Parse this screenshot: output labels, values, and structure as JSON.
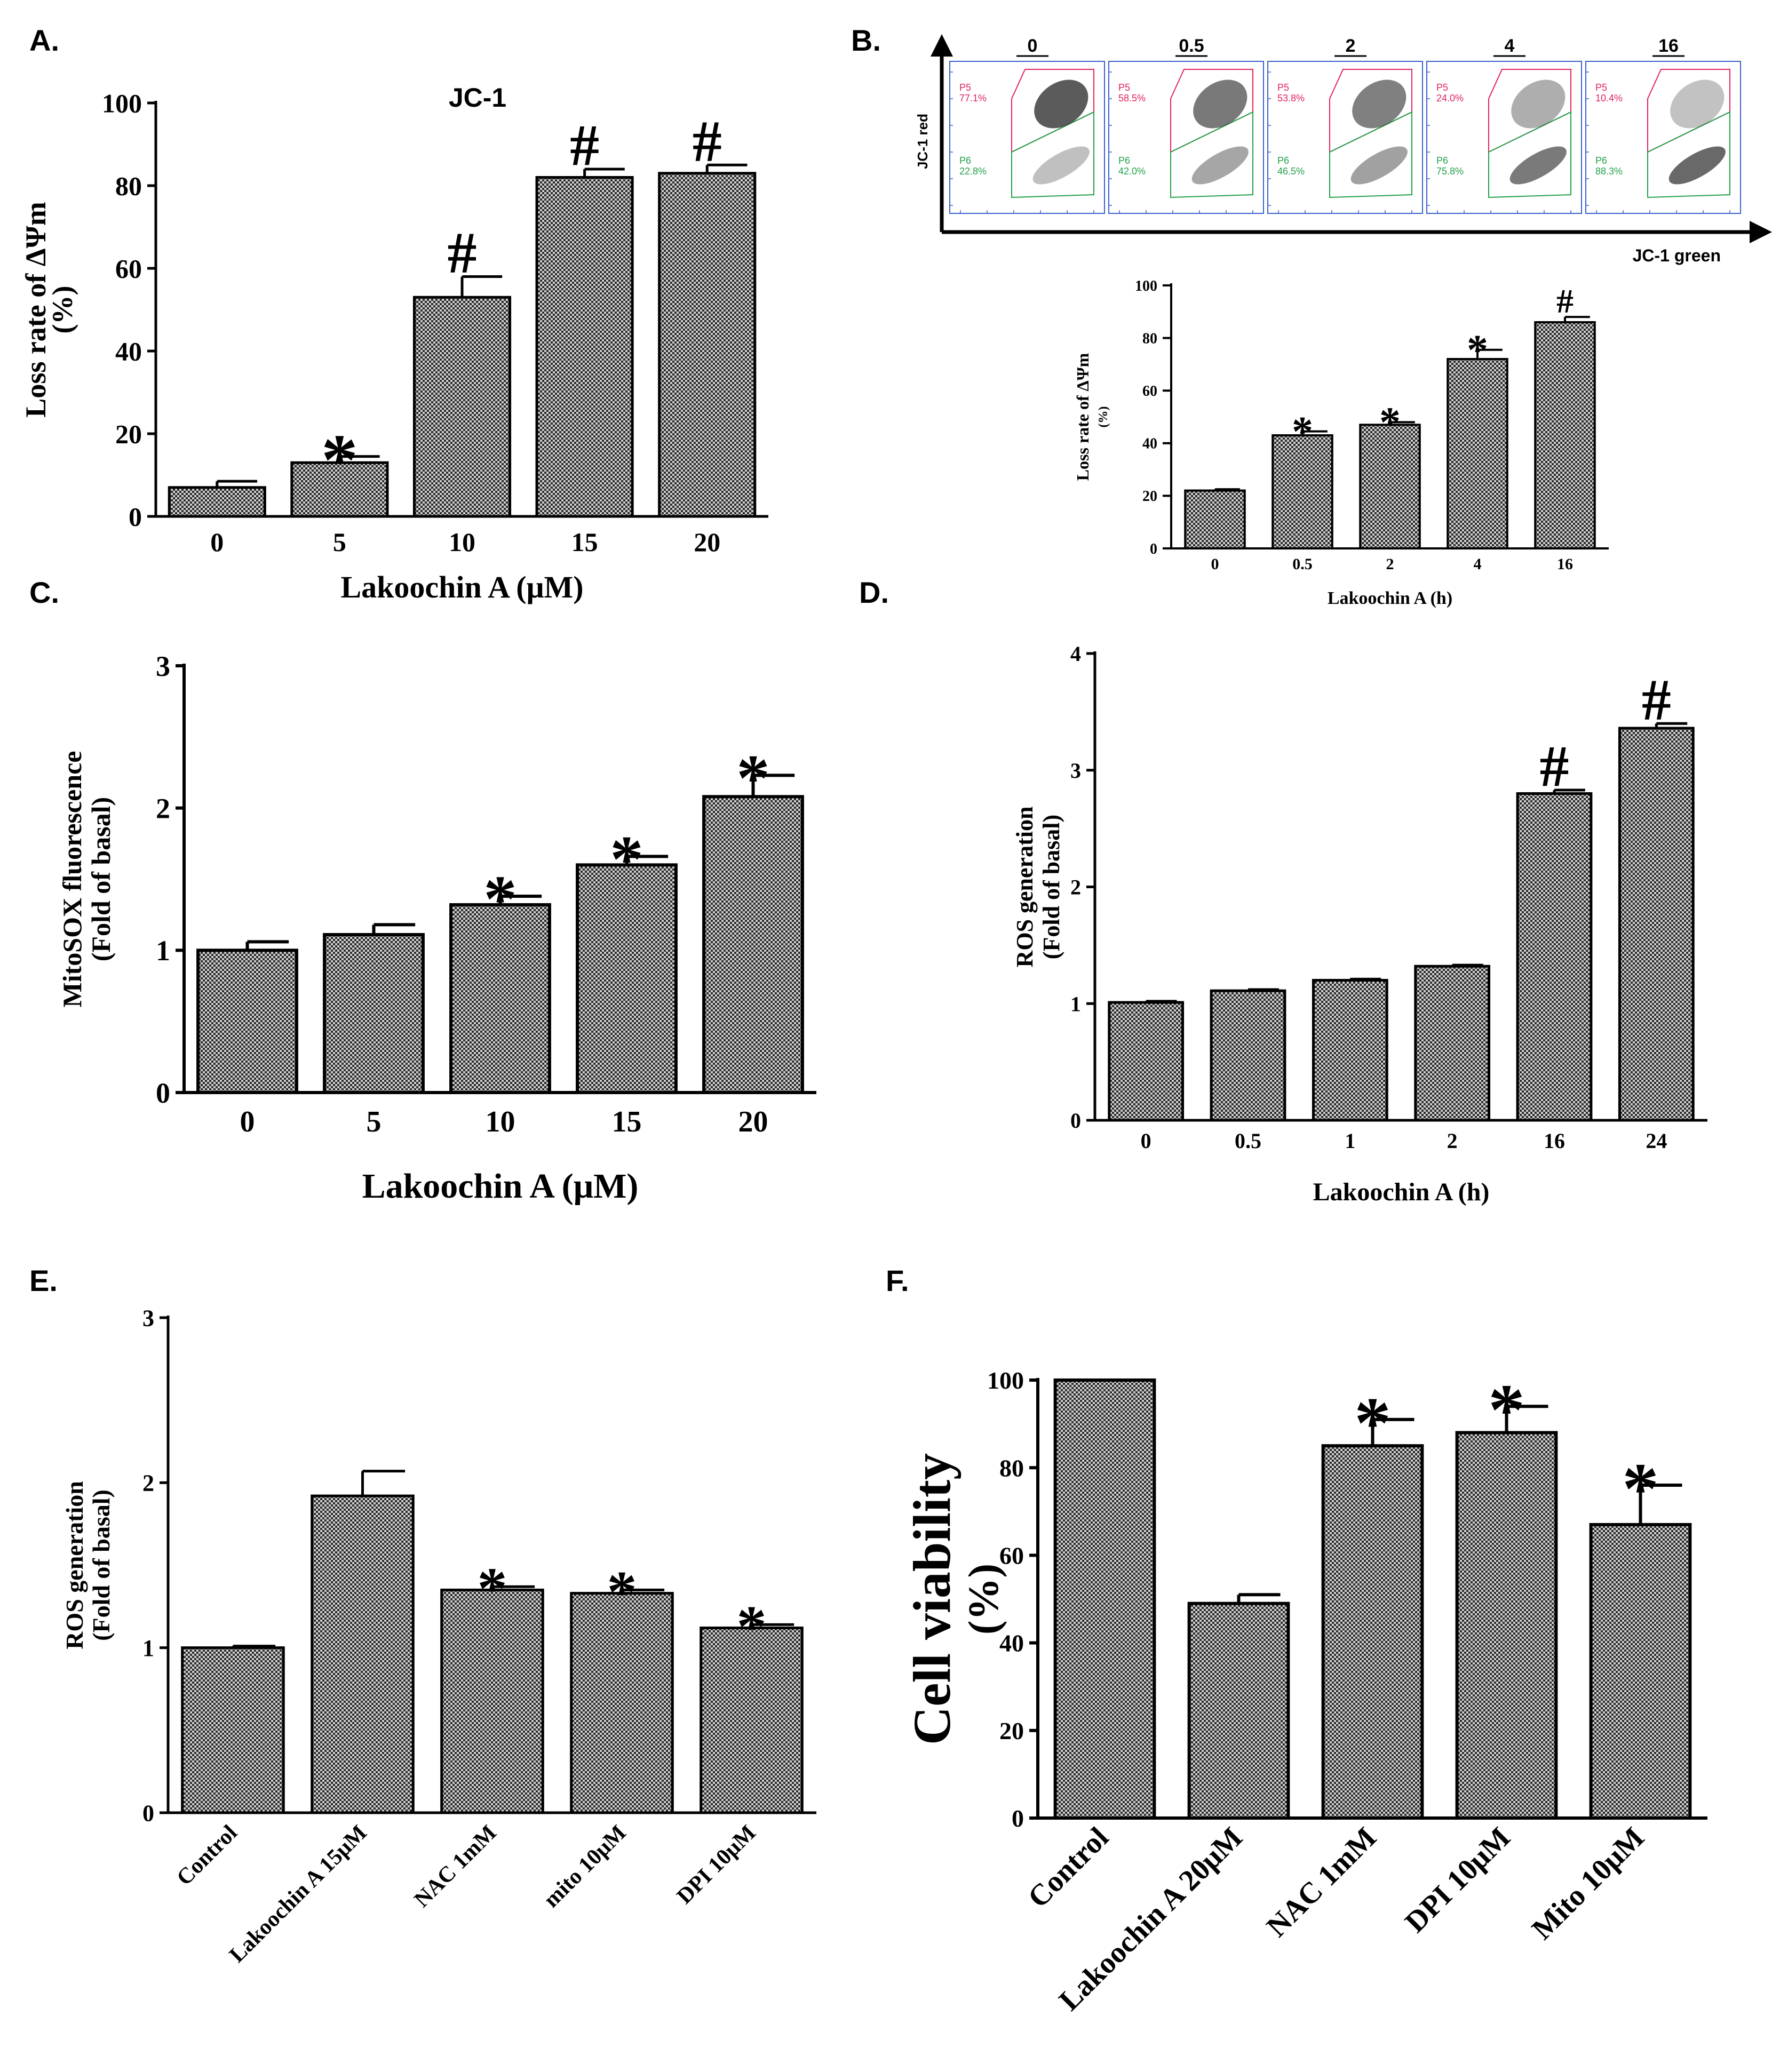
{
  "panels": {
    "A": {
      "letter": "A."
    },
    "B": {
      "letter": "B.",
      "flow": {
        "y_axis_label": "JC-1 red",
        "x_axis_label": "JC-1 green",
        "gate_upper_name": "P5",
        "gate_lower_name": "P6",
        "plots": [
          {
            "label": "0",
            "upper": "77.1%",
            "lower": "22.8%"
          },
          {
            "label": "0.5",
            "upper": "58.5%",
            "lower": "42.0%"
          },
          {
            "label": "2",
            "upper": "53.8%",
            "lower": "46.5%"
          },
          {
            "label": "4",
            "upper": "24.0%",
            "lower": "75.8%"
          },
          {
            "label": "16",
            "upper": "10.4%",
            "lower": "88.3%"
          }
        ]
      }
    },
    "C": {
      "letter": "C."
    },
    "D": {
      "letter": "D."
    },
    "E": {
      "letter": "E."
    },
    "F": {
      "letter": "F."
    }
  },
  "colors": {
    "bar_fill": "#bdbdbd",
    "bar_stroke": "#000000",
    "gate_upper": "#e0245e",
    "gate_lower": "#22a04a",
    "flow_frame": "#3a5fcd"
  },
  "chart_data": [
    {
      "id": "A",
      "type": "bar",
      "title": "JC-1",
      "categories": [
        "0",
        "5",
        "10",
        "15",
        "20"
      ],
      "values": [
        7,
        13,
        53,
        82,
        83
      ],
      "errors": [
        1.5,
        1.5,
        5,
        2,
        2
      ],
      "annotations": [
        "",
        "*",
        "#",
        "#",
        "#"
      ],
      "xlabel": "Lakoochin A (μM)",
      "ylabel": [
        "Loss rate of ΔΨm",
        "(%)"
      ],
      "ylim": [
        0,
        100
      ],
      "yticks": [
        "0",
        "20",
        "40",
        "60",
        "80",
        "100"
      ]
    },
    {
      "id": "B",
      "type": "bar",
      "title": "",
      "categories": [
        "0",
        "0.5",
        "2",
        "4",
        "16"
      ],
      "values": [
        22,
        43,
        47,
        72,
        86
      ],
      "errors": [
        0.5,
        1.5,
        1,
        3.5,
        2
      ],
      "annotations": [
        "",
        "*",
        "*",
        "*",
        "#"
      ],
      "xlabel": "Lakoochin A  (h)",
      "ylabel": [
        "Loss rate of ΔΨm",
        "(%)"
      ],
      "ylim": [
        0,
        100
      ],
      "yticks": [
        "0",
        "20",
        "40",
        "60",
        "80",
        "100"
      ]
    },
    {
      "id": "C",
      "type": "bar",
      "title": "",
      "categories": [
        "0",
        "5",
        "10",
        "15",
        "20"
      ],
      "values": [
        1.0,
        1.11,
        1.32,
        1.6,
        2.08
      ],
      "errors": [
        0.06,
        0.07,
        0.06,
        0.06,
        0.15
      ],
      "annotations": [
        "",
        "",
        "*",
        "*",
        "*"
      ],
      "xlabel": "Lakoochin A (μM)",
      "ylabel": [
        "MitoSOX fluorescence",
        "(Fold of basal)"
      ],
      "ylim": [
        0,
        3
      ],
      "yticks": [
        "0",
        "1",
        "2",
        "3"
      ]
    },
    {
      "id": "D",
      "type": "bar",
      "title": "",
      "categories": [
        "0",
        "0.5",
        "1",
        "2",
        "16",
        "24"
      ],
      "values": [
        1.01,
        1.11,
        1.2,
        1.32,
        2.8,
        3.36
      ],
      "errors": [
        0.01,
        0.01,
        0.01,
        0.01,
        0.03,
        0.04
      ],
      "annotations": [
        "",
        "",
        "",
        "",
        "#",
        "#"
      ],
      "xlabel": "Lakoochin A (h)",
      "ylabel": [
        "ROS generation",
        "(Fold of basal)"
      ],
      "ylim": [
        0,
        4
      ],
      "yticks": [
        "0",
        "1",
        "2",
        "3",
        "4"
      ]
    },
    {
      "id": "E",
      "type": "bar",
      "title": "",
      "categories": [
        "Control",
        "Lakoochin A 15μM",
        "NAC 1mM",
        "mito 10μM",
        "DPI 10μM"
      ],
      "values": [
        1.0,
        1.92,
        1.35,
        1.33,
        1.12
      ],
      "errors": [
        0.01,
        0.15,
        0.02,
        0.02,
        0.02
      ],
      "annotations": [
        "",
        "",
        "*",
        "*",
        "*"
      ],
      "xlabel": "",
      "ylabel": [
        "ROS generation",
        "(Fold of basal)"
      ],
      "ylim": [
        0,
        3
      ],
      "yticks": [
        "0",
        "1",
        "2",
        "3"
      ]
    },
    {
      "id": "F",
      "type": "bar",
      "title": "",
      "categories": [
        "Control",
        "Lakoochin A 20μM",
        "NAC 1mM",
        "DPI  10μM",
        "Mito  10μM"
      ],
      "values": [
        100,
        49,
        85,
        88,
        67
      ],
      "errors": [
        0,
        2,
        6,
        6,
        9
      ],
      "annotations": [
        "",
        "",
        "*",
        "*",
        "*"
      ],
      "xlabel": "",
      "ylabel": [
        "Cell viability",
        "(%)"
      ],
      "ylim": [
        0,
        100
      ],
      "yticks": [
        "0",
        "20",
        "40",
        "60",
        "80",
        "100"
      ]
    }
  ]
}
